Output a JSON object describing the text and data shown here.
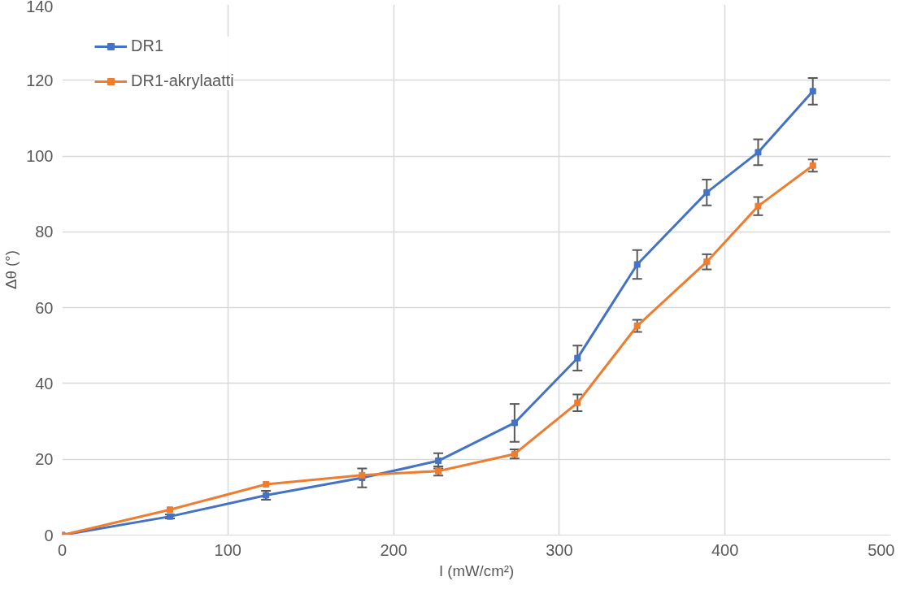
{
  "chart_data": {
    "type": "line",
    "xlabel": "I (mW/cm²)",
    "ylabel": "Δθ (°)",
    "xlim": [
      0,
      500
    ],
    "xticks": [
      0,
      100,
      200,
      300,
      400,
      500
    ],
    "ylim": [
      0,
      140
    ],
    "yticks": [
      0,
      20,
      40,
      60,
      80,
      100,
      120,
      140
    ],
    "grid": true,
    "legend": "top left",
    "marker": "square",
    "line_style": "solid",
    "x": [
      0,
      65,
      123,
      181,
      227,
      273,
      311,
      347,
      389,
      420,
      453
    ],
    "series": [
      {
        "name": "DR1",
        "color": "#4472c4",
        "values": [
          0,
          4.9,
          10.5,
          15.1,
          19.6,
          29.6,
          46.7,
          71.4,
          90.4,
          101.0,
          117.1
        ],
        "errors": [
          null,
          0.5,
          1.2,
          2.5,
          2,
          5,
          3.3,
          3.8,
          3.4,
          3.4,
          3.5
        ]
      },
      {
        "name": "DR1-akrylaatti",
        "color": "#ed7d31",
        "values": [
          0,
          6.7,
          13.4,
          15.8,
          16.9,
          21.4,
          34.9,
          55.2,
          72.1,
          86.8,
          97.5
        ],
        "errors": [
          null,
          null,
          null,
          null,
          1.2,
          1.2,
          2.2,
          1.6,
          2,
          2.4,
          1.6
        ]
      }
    ]
  }
}
